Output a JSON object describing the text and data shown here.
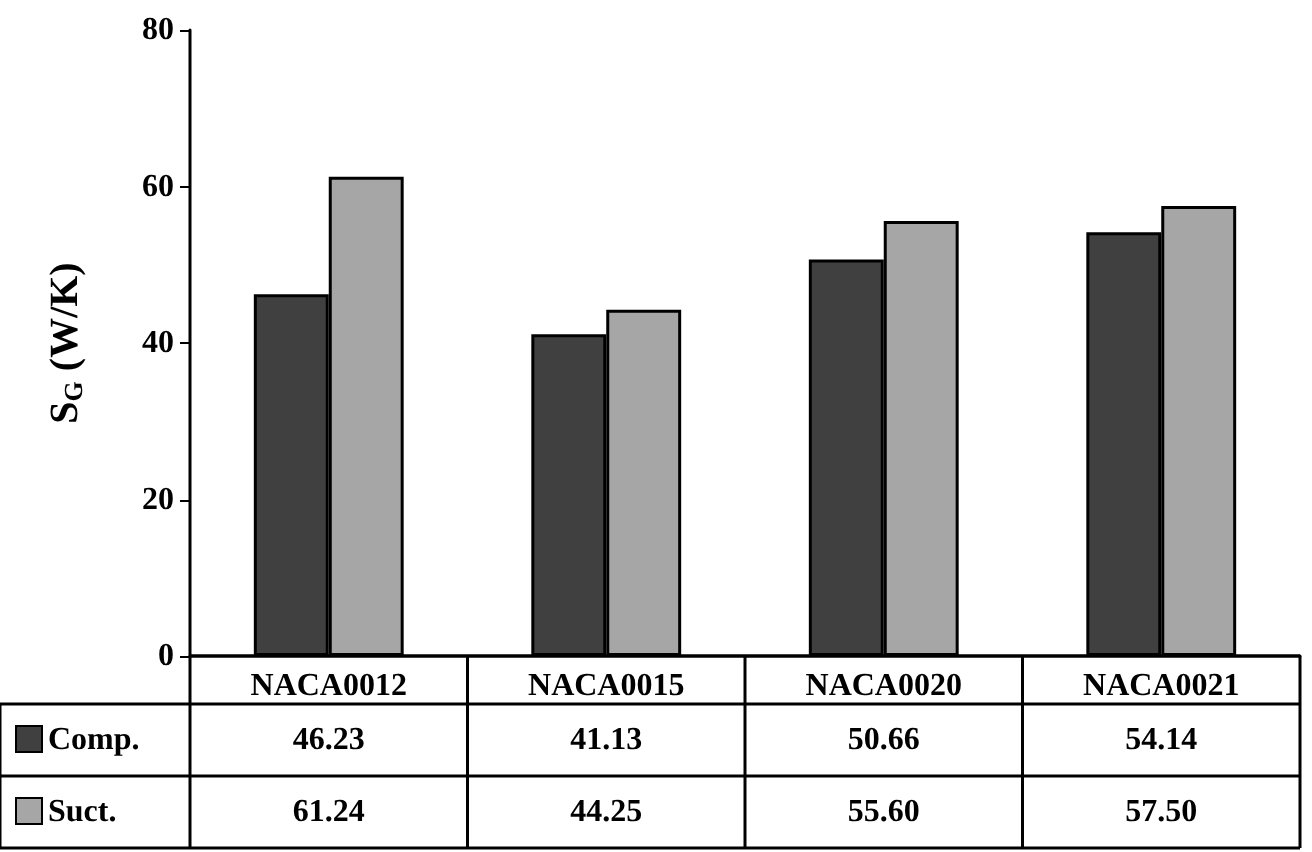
{
  "chart_data": {
    "type": "bar",
    "ylabel": "S$_{G}$ (W/K)",
    "categories": [
      "NACA0012",
      "NACA0015",
      "NACA0020",
      "NACA0021"
    ],
    "series": [
      {
        "name": "Comp.",
        "color": "#404040",
        "values": [
          46.23,
          41.13,
          50.66,
          54.14
        ],
        "value_labels": [
          "46.23",
          "41.13",
          "50.66",
          "54.14"
        ]
      },
      {
        "name": "Suct.",
        "color": "#a6a6a6",
        "values": [
          61.24,
          44.25,
          55.6,
          57.5
        ],
        "value_labels": [
          "61.24",
          "44.25",
          "55.60",
          "57.50"
        ]
      }
    ],
    "ylim": [
      0,
      80
    ],
    "yticks": [
      0,
      20,
      40,
      60,
      80
    ],
    "grid": false,
    "legend": "bottom"
  }
}
